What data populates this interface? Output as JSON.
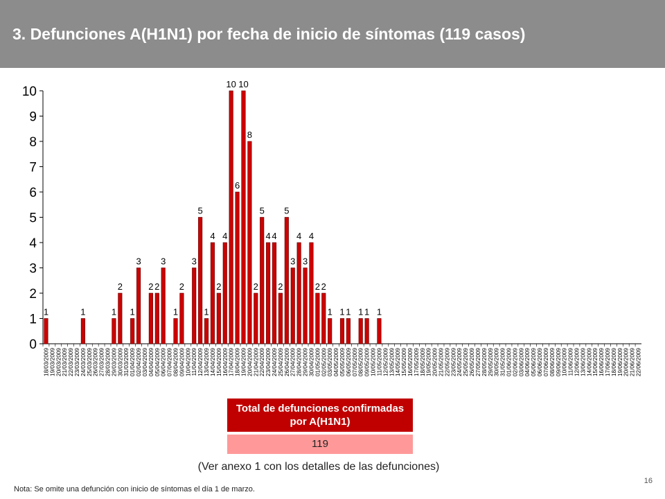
{
  "title": "3. Defunciones A(H1N1) por fecha de inicio de síntomas (119 casos)",
  "total_box": {
    "heading": "Total de defunciones confirmadas por A(H1N1)",
    "value": "119"
  },
  "annex_note": "(Ver anexo 1 con los detalles de  las defunciones)",
  "page_number": "16",
  "footnote": "Nota: Se omite una defunción con inicio de síntomas el día 1 de marzo.",
  "colors": {
    "bar": "#cc0000",
    "header": "#8c8c8c",
    "box_head": "#c00000",
    "box_value": "#ff9999"
  },
  "chart_data": {
    "type": "bar",
    "start_date": "18/03/2009",
    "categories": [
      "18/03/2009",
      "19/03/2009",
      "20/03/2009",
      "21/03/2009",
      "22/03/2009",
      "23/03/2009",
      "24/03/2009",
      "25/03/2009",
      "26/03/2009",
      "27/03/2009",
      "28/03/2009",
      "29/03/2009",
      "30/03/2009",
      "31/03/2009",
      "01/04/2009",
      "02/04/2009",
      "03/04/2009",
      "04/04/2009",
      "05/04/2009",
      "06/04/2009",
      "07/04/2009",
      "08/04/2009",
      "09/04/2009",
      "10/04/2009",
      "11/04/2009",
      "12/04/2009",
      "13/04/2009",
      "14/04/2009",
      "15/04/2009",
      "16/04/2009",
      "17/04/2009",
      "18/04/2009",
      "19/04/2009",
      "20/04/2009",
      "21/04/2009",
      "22/04/2009",
      "23/04/2009",
      "24/04/2009",
      "25/04/2009",
      "26/04/2009",
      "27/04/2009",
      "28/04/2009",
      "29/04/2009",
      "30/04/2009",
      "01/05/2009",
      "02/05/2009",
      "03/05/2009",
      "04/05/2009",
      "05/05/2009",
      "06/05/2009",
      "07/05/2009",
      "08/05/2009",
      "09/05/2009",
      "10/05/2009",
      "11/05/2009",
      "12/05/2009",
      "13/05/2009",
      "14/05/2009",
      "15/05/2009",
      "16/05/2009",
      "17/05/2009",
      "18/05/2009",
      "19/05/2009",
      "20/05/2009",
      "21/05/2009",
      "22/05/2009",
      "23/05/2009",
      "24/05/2009",
      "25/05/2009",
      "26/05/2009",
      "27/05/2009",
      "28/05/2009",
      "29/05/2009",
      "30/05/2009",
      "31/05/2009",
      "01/06/2009",
      "02/06/2009",
      "03/06/2009",
      "04/06/2009",
      "05/06/2009",
      "06/06/2009",
      "07/06/2009",
      "08/06/2009",
      "09/06/2009",
      "10/06/2009",
      "11/06/2009",
      "12/06/2009",
      "13/06/2009",
      "14/06/2009",
      "15/06/2009",
      "16/06/2009",
      "17/06/2009",
      "18/06/2009",
      "19/06/2009",
      "20/06/2009",
      "21/06/2009",
      "22/06/2009"
    ],
    "values": [
      1,
      0,
      0,
      0,
      0,
      0,
      1,
      0,
      0,
      0,
      0,
      1,
      2,
      0,
      1,
      3,
      0,
      2,
      2,
      3,
      0,
      1,
      2,
      0,
      3,
      5,
      1,
      4,
      2,
      4,
      10,
      6,
      10,
      8,
      2,
      5,
      4,
      4,
      2,
      5,
      3,
      4,
      3,
      4,
      2,
      2,
      1,
      0,
      1,
      1,
      0,
      1,
      1,
      0,
      1,
      0,
      0,
      0,
      0,
      0,
      0,
      0,
      0,
      0,
      0,
      0,
      0,
      0,
      0,
      0,
      0,
      0,
      0,
      0,
      0,
      0,
      0,
      0,
      0,
      0,
      0,
      0,
      0,
      0,
      0,
      0,
      0,
      0,
      0,
      0,
      0,
      0,
      0,
      0,
      0,
      0,
      0
    ],
    "ylim": [
      0,
      10
    ],
    "yticks": [
      0,
      1,
      2,
      3,
      4,
      5,
      6,
      7,
      8,
      9,
      10
    ],
    "grid": false,
    "legend": "none"
  }
}
